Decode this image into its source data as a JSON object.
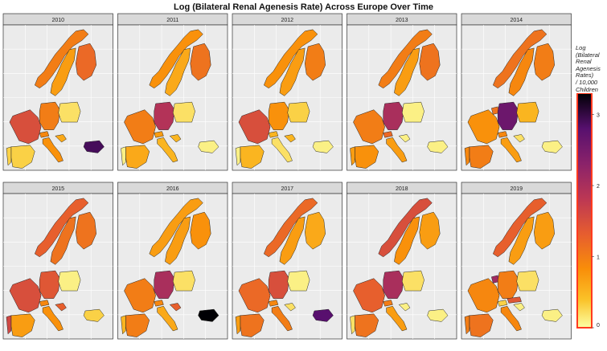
{
  "title": "Log (Bilateral Renal Agenesis Rate) Across Europe Over Time",
  "legend": {
    "title_lines": [
      "Log",
      "(Bilateral",
      "Renal",
      "Agenesis",
      "Rates)",
      "/ 10,000",
      "Children"
    ],
    "ticks": [
      "0",
      "1",
      "2",
      "3"
    ],
    "range": [
      0,
      3.3
    ]
  },
  "colors": {
    "panel_bg": "#ebebeb",
    "strip_bg": "#d9d9d9",
    "grid": "#ffffff",
    "legend_border": "#ff3b1f"
  },
  "chart_data": {
    "type": "heatmap",
    "description_type": "choropleth-facets",
    "title": "Log (Bilateral Renal Agenesis Rate) Across Europe Over Time",
    "legend_title": "Log (Bilateral Renal Agenesis Rates) / 10,000 Children",
    "scale_range": [
      0,
      3.3
    ],
    "legend_position": "right",
    "regions": [
      "Norway",
      "Sweden",
      "Finland",
      "Denmark",
      "Netherlands",
      "Germany",
      "Poland",
      "France",
      "Switzerland",
      "Austria",
      "Spain",
      "Portugal",
      "Italy",
      "Croatia",
      "Bulgaria"
    ],
    "facets": [
      {
        "year": "2010",
        "values": {
          "Norway": 1.0,
          "Sweden": 0.7,
          "Finland": 1.2,
          "Denmark": null,
          "Netherlands": null,
          "Germany": 1.0,
          "Poland": 0.2,
          "France": 1.5,
          "Switzerland": 0.9,
          "Austria": null,
          "Spain": 0.3,
          "Portugal": 0.3,
          "Italy": 0.8,
          "Croatia": 0.6,
          "Bulgaria": 2.9
        }
      },
      {
        "year": "2011",
        "values": {
          "Norway": 0.8,
          "Sweden": 0.6,
          "Finland": 1.1,
          "Denmark": null,
          "Netherlands": null,
          "Germany": 1.9,
          "Poland": 0.2,
          "France": 1.0,
          "Switzerland": 0.7,
          "Austria": null,
          "Spain": 0.6,
          "Portugal": 0.1,
          "Italy": 0.5,
          "Croatia": 0.5,
          "Bulgaria": 0.1
        }
      },
      {
        "year": "2012",
        "values": {
          "Norway": 0.8,
          "Sweden": 0.7,
          "Finland": 1.0,
          "Denmark": null,
          "Netherlands": null,
          "Germany": 0.8,
          "Poland": 0.3,
          "France": 1.5,
          "Switzerland": 0.5,
          "Austria": null,
          "Spain": 0.5,
          "Portugal": 0.1,
          "Italy": 0.2,
          "Croatia": 0.5,
          "Bulgaria": 0.1
        }
      },
      {
        "year": "2013",
        "values": {
          "Norway": 1.0,
          "Sweden": 0.7,
          "Finland": 1.1,
          "Denmark": null,
          "Netherlands": null,
          "Germany": 2.0,
          "Poland": 0.1,
          "France": 1.0,
          "Switzerland": 1.2,
          "Austria": null,
          "Spain": 0.8,
          "Portugal": 0.7,
          "Italy": 0.7,
          "Croatia": 0.1,
          "Bulgaria": 0.1
        }
      },
      {
        "year": "2014",
        "values": {
          "Norway": 1.1,
          "Sweden": 0.9,
          "Finland": 1.0,
          "Denmark": null,
          "Netherlands": 1.1,
          "Germany": 2.6,
          "Poland": 0.5,
          "France": 0.8,
          "Switzerland": 0.9,
          "Austria": null,
          "Spain": 1.0,
          "Portugal": 0.9,
          "Italy": 0.7,
          "Croatia": 0.2,
          "Bulgaria": 0.1
        }
      },
      {
        "year": "2015",
        "values": {
          "Norway": 1.3,
          "Sweden": 1.1,
          "Finland": 1.1,
          "Denmark": null,
          "Netherlands": null,
          "Germany": 1.4,
          "Poland": 0.1,
          "France": 1.5,
          "Switzerland": 0.9,
          "Austria": null,
          "Spain": 0.7,
          "Portugal": 1.6,
          "Italy": 0.8,
          "Croatia": 1.3,
          "Bulgaria": 0.3
        }
      },
      {
        "year": "2016",
        "values": {
          "Norway": 0.7,
          "Sweden": 0.7,
          "Finland": 0.8,
          "Denmark": null,
          "Netherlands": null,
          "Germany": 2.0,
          "Poland": 0.2,
          "France": 1.0,
          "Switzerland": 0.9,
          "Austria": null,
          "Spain": 1.0,
          "Portugal": 0.5,
          "Italy": 0.6,
          "Croatia": 1.3,
          "Bulgaria": 3.3
        }
      },
      {
        "year": "2017",
        "values": {
          "Norway": 1.2,
          "Sweden": 0.7,
          "Finland": 0.6,
          "Denmark": null,
          "Netherlands": null,
          "Germany": 1.5,
          "Poland": 0.1,
          "France": 1.2,
          "Switzerland": 0.9,
          "Austria": null,
          "Spain": 1.1,
          "Portugal": 0.7,
          "Italy": 1.0,
          "Croatia": 0.2,
          "Bulgaria": 2.8
        }
      },
      {
        "year": "2018",
        "values": {
          "Norway": 1.5,
          "Sweden": 0.8,
          "Finland": 0.7,
          "Denmark": null,
          "Netherlands": null,
          "Germany": 2.0,
          "Poland": 0.2,
          "France": 1.3,
          "Switzerland": 1.0,
          "Austria": null,
          "Spain": 1.1,
          "Portugal": 0.2,
          "Italy": 0.7,
          "Croatia": 0.1,
          "Bulgaria": 0.1
        }
      },
      {
        "year": "2019",
        "values": {
          "Norway": 1.3,
          "Sweden": 0.7,
          "Finland": 0.7,
          "Denmark": null,
          "Netherlands": 2.1,
          "Germany": 1.0,
          "Poland": 0.2,
          "France": 0.9,
          "Switzerland": 0.3,
          "Austria": 1.4,
          "Spain": 1.1,
          "Portugal": 1.0,
          "Italy": 0.9,
          "Croatia": 0.1,
          "Bulgaria": 0.1
        }
      }
    ]
  }
}
